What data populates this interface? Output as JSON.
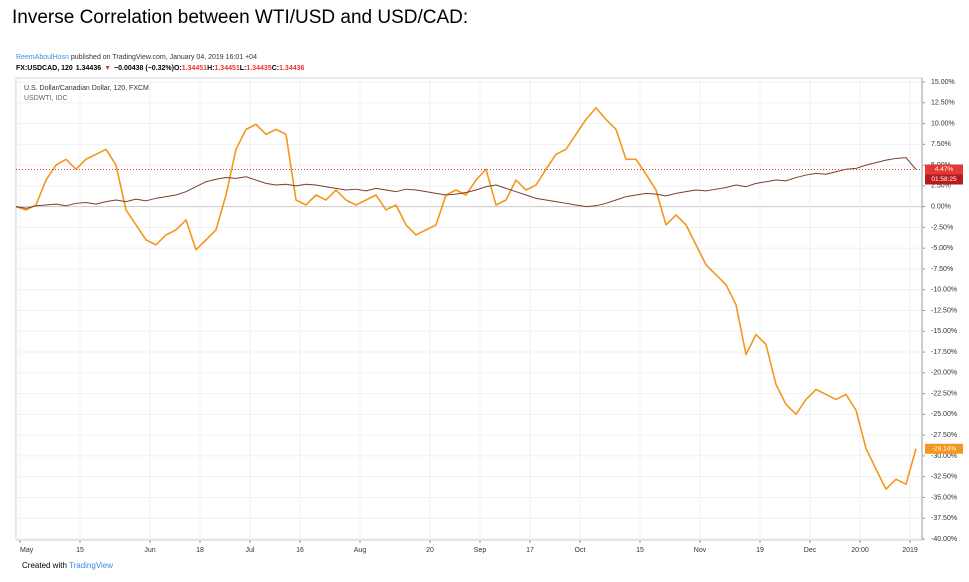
{
  "heading": "Inverse Correlation between WTI/USD and USD/CAD:",
  "publisher": "ReemAboulHosn",
  "published": "published on TradingView.com, January 04, 2019 16:01 +04",
  "symbol_line": [
    {
      "text": "FX:USDCAD, 120",
      "color": "#000000"
    },
    {
      "text": "1.34436",
      "color": "#000000"
    },
    {
      "text": "▼",
      "color": "#e53935"
    },
    {
      "text": "−0.00438 (−0.32%)",
      "color": "#000000"
    },
    {
      "text": "O:",
      "color": "#000000"
    },
    {
      "text": "1.34451",
      "color": "#e53935"
    },
    {
      "text": "H:",
      "color": "#000000"
    },
    {
      "text": "1.34451",
      "color": "#e53935"
    },
    {
      "text": "L:",
      "color": "#000000"
    },
    {
      "text": "1.34435",
      "color": "#e53935"
    },
    {
      "text": "C:",
      "color": "#000000"
    },
    {
      "text": "1.34436",
      "color": "#e53935"
    }
  ],
  "footer": {
    "text": "Created with",
    "brand": "TradingView"
  },
  "chart_data": {
    "type": "line",
    "categories": [
      "May",
      null,
      null,
      null,
      null,
      null,
      "15",
      null,
      null,
      null,
      null,
      null,
      null,
      "Jun",
      null,
      null,
      null,
      null,
      "18",
      null,
      null,
      null,
      null,
      "Jul",
      null,
      null,
      null,
      null,
      "16",
      null,
      null,
      null,
      null,
      null,
      "Aug",
      null,
      null,
      null,
      null,
      null,
      null,
      "20",
      null,
      null,
      null,
      null,
      "Sep",
      null,
      null,
      null,
      null,
      "17",
      null,
      null,
      null,
      null,
      "Oct",
      null,
      null,
      null,
      null,
      null,
      "15",
      null,
      null,
      null,
      null,
      null,
      "Nov",
      null,
      null,
      null,
      null,
      null,
      "19",
      null,
      null,
      null,
      null,
      "Dec",
      null,
      null,
      null,
      null,
      "20:00",
      null,
      null,
      null,
      null,
      "2019",
      null
    ],
    "series": [
      {
        "name": "U.S. Dollar/Canadian Dollar, 120, FXCM",
        "color": "#7b3f2b",
        "values": [
          0,
          -0.2,
          0.1,
          0.2,
          0.3,
          0.1,
          0.4,
          0.5,
          0.3,
          0.6,
          0.8,
          0.6,
          0.9,
          0.7,
          1.0,
          1.2,
          1.4,
          1.8,
          2.4,
          3.0,
          3.3,
          3.5,
          3.4,
          3.6,
          3.2,
          2.8,
          2.6,
          2.7,
          2.5,
          2.7,
          2.6,
          2.4,
          2.2,
          2.0,
          2.1,
          1.9,
          2.2,
          2.0,
          1.8,
          2.1,
          2.0,
          1.8,
          1.6,
          1.4,
          1.5,
          1.7,
          2.0,
          2.4,
          2.6,
          2.2,
          1.8,
          1.4,
          1.0,
          0.8,
          0.6,
          0.4,
          0.2,
          0.0,
          0.1,
          0.4,
          0.8,
          1.2,
          1.4,
          1.6,
          1.5,
          1.3,
          1.6,
          1.8,
          2.0,
          1.9,
          2.1,
          2.3,
          2.6,
          2.4,
          2.8,
          3.0,
          3.2,
          3.1,
          3.5,
          3.8,
          4.0,
          3.9,
          4.2,
          4.5,
          4.6,
          5.0,
          5.3,
          5.6,
          5.8,
          5.9,
          4.47
        ],
        "value_labels": [
          null,
          null,
          null,
          null,
          null,
          null,
          null,
          null,
          null,
          null,
          null,
          null,
          null,
          null,
          null,
          null,
          null,
          null,
          null,
          null,
          null,
          null,
          null,
          null,
          null,
          null,
          null,
          null,
          null,
          null,
          null,
          null,
          null,
          null,
          null,
          null,
          null,
          null,
          null,
          null,
          null,
          null,
          null,
          null,
          null,
          null,
          null,
          null,
          null,
          null,
          null,
          null,
          null,
          null,
          null,
          null,
          null,
          null,
          null,
          null,
          null,
          null,
          null,
          null,
          null,
          null,
          null,
          null,
          null,
          null,
          null,
          null,
          null,
          null,
          null,
          null,
          null,
          null,
          null,
          null,
          null,
          null,
          null,
          null,
          null,
          null,
          null,
          null,
          null,
          null,
          "4.47%"
        ],
        "label_color": "#e53935"
      },
      {
        "name": "USDWTI, IDC",
        "color": "#f5961d",
        "values": [
          0,
          -0.4,
          0.2,
          3.2,
          5,
          5.7,
          4.5,
          5.7,
          6.3,
          6.9,
          5,
          -0.4,
          -2.2,
          -4,
          -4.6,
          -3.4,
          -2.8,
          -1.6,
          -5.2,
          -4,
          -2.8,
          1.4,
          6.9,
          9.3,
          9.9,
          8.7,
          9.3,
          8.7,
          0.8,
          0.2,
          1.4,
          0.8,
          2,
          0.8,
          0.2,
          0.8,
          1.4,
          -0.4,
          0.2,
          -2.2,
          -3.4,
          -2.8,
          -2.2,
          1.4,
          2,
          1.4,
          3.2,
          4.5,
          0.2,
          0.8,
          3.2,
          2,
          2.6,
          4.5,
          6.3,
          6.9,
          8.7,
          10.5,
          11.9,
          10.5,
          9.3,
          5.7,
          5.7,
          3.9,
          2,
          -2.2,
          -1,
          -2.2,
          -4.6,
          -7,
          -8.2,
          -9.4,
          -11.8,
          -17.8,
          -15.4,
          -16.6,
          -21.4,
          -23.8,
          -25,
          -23.2,
          -22,
          -22.6,
          -23.2,
          -22.6,
          -24.5,
          -29.1,
          -31.6,
          -34,
          -32.8,
          -33.4,
          -29.14
        ],
        "value_labels": [
          null,
          null,
          null,
          null,
          null,
          null,
          null,
          null,
          null,
          null,
          null,
          null,
          null,
          null,
          null,
          null,
          null,
          null,
          null,
          null,
          null,
          null,
          null,
          null,
          null,
          null,
          null,
          null,
          null,
          null,
          null,
          null,
          null,
          null,
          null,
          null,
          null,
          null,
          null,
          null,
          null,
          null,
          null,
          null,
          null,
          null,
          null,
          null,
          null,
          null,
          null,
          null,
          null,
          null,
          null,
          null,
          null,
          null,
          null,
          null,
          null,
          null,
          null,
          null,
          null,
          null,
          null,
          null,
          null,
          null,
          null,
          null,
          null,
          null,
          null,
          null,
          null,
          null,
          null,
          null,
          null,
          null,
          null,
          null,
          null,
          null,
          null,
          null,
          null,
          null,
          "-29.14%"
        ],
        "label_color": "#f5961d"
      }
    ],
    "countdown": "01:58:25",
    "ylim": [
      -40,
      15
    ],
    "yticks": [
      {
        "value": 15,
        "label": "15.00%"
      },
      {
        "value": 12.5,
        "label": "12.50%"
      },
      {
        "value": 10,
        "label": "10.00%"
      },
      {
        "value": 7.5,
        "label": "7.50%"
      },
      {
        "value": 5,
        "label": "5.00%"
      },
      {
        "value": 2.5,
        "label": "2.50%"
      },
      {
        "value": 0,
        "label": "0.00%"
      },
      {
        "value": -2.5,
        "label": "-2.50%"
      },
      {
        "value": -5,
        "label": "-5.00%"
      },
      {
        "value": -7.5,
        "label": "-7.50%"
      },
      {
        "value": -10,
        "label": "-10.00%"
      },
      {
        "value": -12.5,
        "label": "-12.50%"
      },
      {
        "value": -15,
        "label": "-15.00%"
      },
      {
        "value": -17.5,
        "label": "-17.50%"
      },
      {
        "value": -20,
        "label": "-20.00%"
      },
      {
        "value": -22.5,
        "label": "-22.50%"
      },
      {
        "value": -25,
        "label": "-25.00%"
      },
      {
        "value": -27.5,
        "label": "-27.50%"
      },
      {
        "value": -30,
        "label": "-30.00%"
      },
      {
        "value": -32.5,
        "label": "-32.50%"
      },
      {
        "value": -35,
        "label": "-35.00%"
      },
      {
        "value": -37.5,
        "label": "-37.50%"
      },
      {
        "value": -40,
        "label": "-40.00%"
      }
    ],
    "grid": true,
    "legend": "top-left"
  }
}
